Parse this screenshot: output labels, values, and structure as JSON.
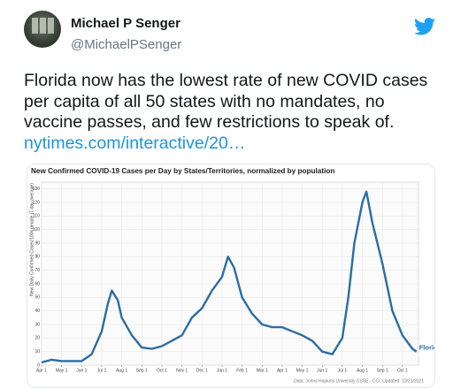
{
  "tweet": {
    "name": "Michael P Senger",
    "handle": "@MichaelPSenger",
    "text_lines": [
      "Florida now has the lowest rate of new COVID cases",
      "per capita of all 50 states with no mandates, no",
      "vaccine passes, and few restrictions to speak of."
    ],
    "link": "nytimes.com/interactive/20…"
  },
  "chart_data": {
    "type": "line",
    "title": "New Confirmed COVID-19 Cases per Day by States/Territories, normalized by population",
    "y_label": "New Daily Confirmed Cases/100k people (7-day average)",
    "source": "Data: Johns Hopkins University CSSE - CCI; Updated: 10/23/2021",
    "xlim": [
      0,
      18.8
    ],
    "xticks": [
      {
        "value": 0,
        "label": "Apr 1"
      },
      {
        "value": 1,
        "label": "May 1"
      },
      {
        "value": 2,
        "label": "Jun 1"
      },
      {
        "value": 3,
        "label": "Jul 1"
      },
      {
        "value": 4,
        "label": "Aug 1"
      },
      {
        "value": 5,
        "label": "Sep 1"
      },
      {
        "value": 6,
        "label": "Oct 1"
      },
      {
        "value": 7,
        "label": "Nov 1"
      },
      {
        "value": 8,
        "label": "Dec 1"
      },
      {
        "value": 9,
        "label": "Jan 1"
      },
      {
        "value": 10,
        "label": "Feb 1"
      },
      {
        "value": 11,
        "label": "Mar 1"
      },
      {
        "value": 12,
        "label": "Apr 1"
      },
      {
        "value": 13,
        "label": "May 1"
      },
      {
        "value": 14,
        "label": "Jun 1"
      },
      {
        "value": 15,
        "label": "Jul 1"
      },
      {
        "value": 16,
        "label": "Aug 1"
      },
      {
        "value": 17,
        "label": "Sep 1"
      },
      {
        "value": 18,
        "label": "Oct 1"
      }
    ],
    "ylim": [
      0,
      135
    ],
    "yticks": [
      0,
      10,
      20,
      30,
      40,
      50,
      60,
      70,
      80,
      90,
      100,
      110,
      120,
      130
    ],
    "grid": true,
    "x": [
      0,
      0.5,
      1,
      1.5,
      2,
      2.5,
      3,
      3.3,
      3.5,
      3.8,
      4,
      4.5,
      5,
      5.5,
      6,
      6.5,
      7,
      7.5,
      8,
      8.5,
      9,
      9.3,
      9.6,
      10,
      10.5,
      11,
      11.5,
      12,
      12.5,
      13,
      13.5,
      14,
      14.5,
      15,
      15.3,
      15.6,
      16,
      16.2,
      16.5,
      17,
      17.5,
      18,
      18.5,
      18.7
    ],
    "series": [
      {
        "name": "Florida",
        "color": "#2b6ca8",
        "values": [
          2,
          4,
          3,
          3,
          3,
          8,
          25,
          45,
          55,
          48,
          35,
          22,
          13,
          12,
          14,
          18,
          22,
          35,
          42,
          55,
          65,
          80,
          72,
          50,
          38,
          30,
          28,
          28,
          25,
          22,
          18,
          10,
          8,
          20,
          50,
          90,
          120,
          128,
          105,
          75,
          40,
          22,
          12,
          10
        ]
      }
    ]
  }
}
